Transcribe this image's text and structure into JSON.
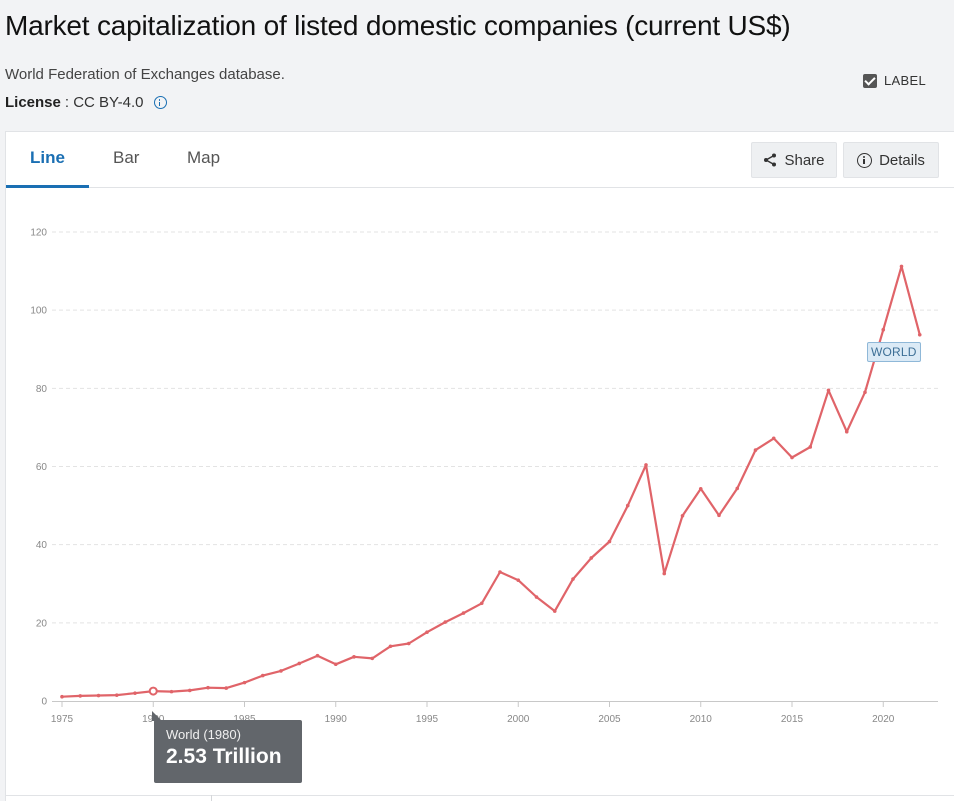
{
  "header": {
    "title": "Market capitalization of listed domestic companies (current US$)",
    "source": "World Federation of Exchanges database.",
    "license_label": "License",
    "license_value": ": CC BY-4.0"
  },
  "tabs": [
    {
      "label": "Line",
      "active": true
    },
    {
      "label": "Bar",
      "active": false
    },
    {
      "label": "Map",
      "active": false
    }
  ],
  "toolbar": {
    "share_label": "Share",
    "details_label": "Details",
    "label_toggle": "LABEL"
  },
  "colors": {
    "series": "#e06469",
    "accent": "#1a6fb3"
  },
  "chart_data": {
    "type": "line",
    "series": [
      {
        "name": "WORLD",
        "x": [
          1975,
          1976,
          1977,
          1978,
          1979,
          1980,
          1981,
          1982,
          1983,
          1984,
          1985,
          1986,
          1987,
          1988,
          1989,
          1990,
          1991,
          1992,
          1993,
          1994,
          1995,
          1996,
          1997,
          1998,
          1999,
          2000,
          2001,
          2002,
          2003,
          2004,
          2005,
          2006,
          2007,
          2008,
          2009,
          2010,
          2011,
          2012,
          2013,
          2014,
          2015,
          2016,
          2017,
          2018,
          2019,
          2020,
          2021,
          2022
        ],
        "values": [
          1.1,
          1.3,
          1.4,
          1.5,
          2.0,
          2.53,
          2.4,
          2.7,
          3.4,
          3.3,
          4.7,
          6.5,
          7.7,
          9.6,
          11.6,
          9.4,
          11.3,
          10.9,
          14.0,
          14.7,
          17.6,
          20.2,
          22.5,
          25.0,
          33.0,
          30.9,
          26.6,
          23.0,
          31.2,
          36.6,
          40.8,
          50.0,
          60.4,
          32.6,
          47.4,
          54.3,
          47.5,
          54.4,
          64.2,
          67.2,
          62.3,
          65.0,
          79.5,
          68.9,
          79.0,
          95.0,
          111.2,
          93.7
        ]
      }
    ],
    "highlight": {
      "x": 1980,
      "value": 2.53
    },
    "tooltip": {
      "title": "World (1980)",
      "value": "2.53 Trillion"
    },
    "x_ticks": [
      1975,
      1980,
      1985,
      1990,
      1995,
      2000,
      2005,
      2010,
      2015,
      2020
    ],
    "y_ticks": [
      0,
      20,
      40,
      60,
      80,
      100,
      120
    ],
    "xlim": [
      1975,
      2023
    ],
    "ylim": [
      0,
      120
    ],
    "grid": true
  }
}
